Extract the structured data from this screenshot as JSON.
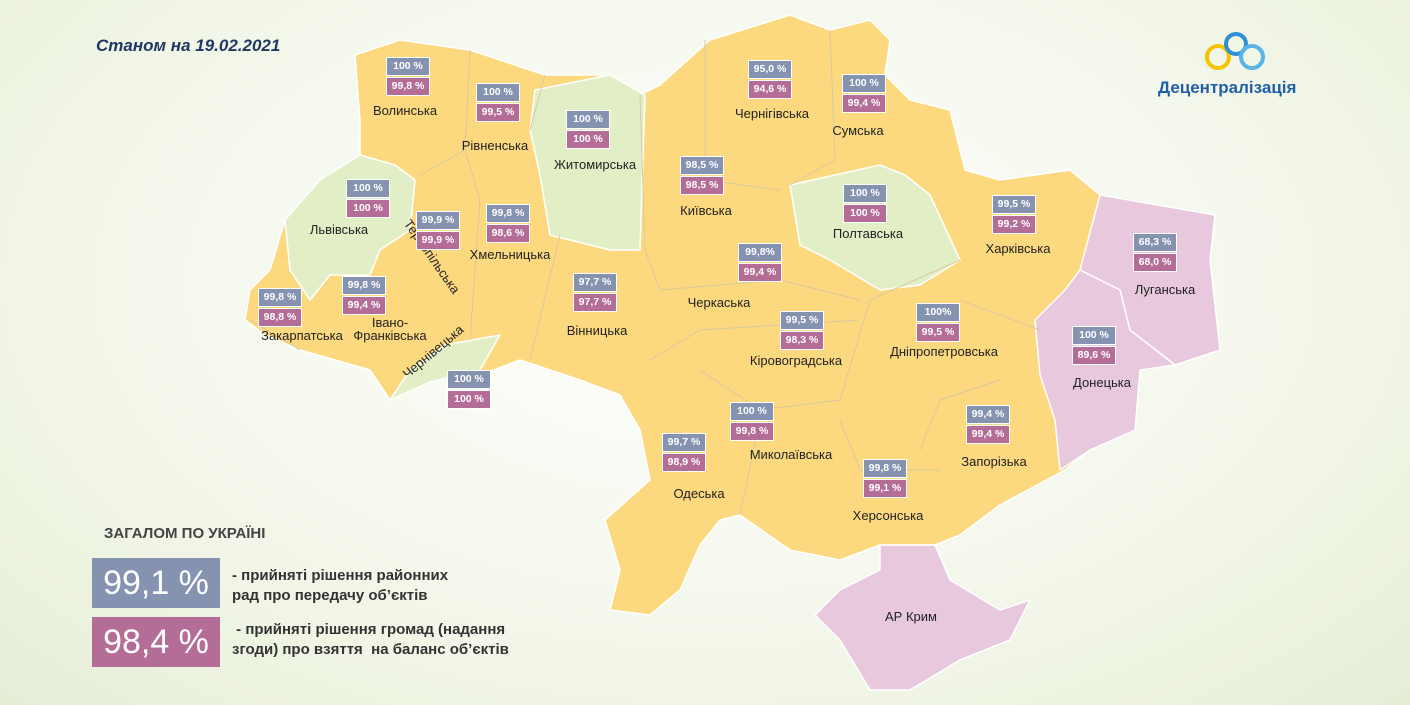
{
  "date": "Станом на 19.02.2021",
  "logo": "Децентралізація",
  "regions": [
    {
      "name": "Волинська",
      "districts": "100 %",
      "communities": "99,8 %"
    },
    {
      "name": "Рівненська",
      "districts": "100 %",
      "communities": "99,5 %"
    },
    {
      "name": "Житомирська",
      "districts": "100 %",
      "communities": "100 %"
    },
    {
      "name": "Чернігівська",
      "districts": "95,0 %",
      "communities": "94,6 %"
    },
    {
      "name": "Сумська",
      "districts": "100 %",
      "communities": "99,4 %"
    },
    {
      "name": "Львівська",
      "districts": "100 %",
      "communities": "100 %"
    },
    {
      "name": "Тернопільська",
      "districts": "99,9 %",
      "communities": "99,9 %"
    },
    {
      "name": "Хмельницька",
      "districts": "99,8 %",
      "communities": "98,6 %"
    },
    {
      "name": "Київська",
      "districts": "98,5 %",
      "communities": "98,5 %"
    },
    {
      "name": "Полтавська",
      "districts": "100 %",
      "communities": "100 %"
    },
    {
      "name": "Харківська",
      "districts": "99,5 %",
      "communities": "99,2 %"
    },
    {
      "name": "Луганська",
      "districts": "68,3 %",
      "communities": "68,0 %"
    },
    {
      "name": "Черкаська",
      "districts": "99,8%",
      "communities": "99,4 %"
    },
    {
      "name": "Вінницька",
      "districts": "97,7 %",
      "communities": "97,7 %"
    },
    {
      "name": "Закарпатська",
      "districts": "99,8 %",
      "communities": "98,8 %"
    },
    {
      "name": "Івано-\nФранківська",
      "districts": "99,8 %",
      "communities": "99,4 %"
    },
    {
      "name": "Кіровоградська",
      "districts": "99,5 %",
      "communities": "98,3 %"
    },
    {
      "name": "Дніпропетровська",
      "districts": "100%",
      "communities": "99,5 %"
    },
    {
      "name": "Донецька",
      "districts": "100 %",
      "communities": "89,6 %"
    },
    {
      "name": "Чернівецька",
      "districts": "100 %",
      "communities": "100 %"
    },
    {
      "name": "Миколаївська",
      "districts": "100 %",
      "communities": "99,8 %"
    },
    {
      "name": "Одеська",
      "districts": "99,7 %",
      "communities": "98,9 %"
    },
    {
      "name": "Запорізька",
      "districts": "99,4 %",
      "communities": "99,4 %"
    },
    {
      "name": "Херсонська",
      "districts": "99,8 %",
      "communities": "99,1 %"
    },
    {
      "name": "АР Крим"
    }
  ],
  "summary": {
    "title": "ЗАГАЛОМ ПО УКРАЇНІ",
    "items": [
      {
        "value": "99,1 %",
        "text": "- прийняті рішення районних\nрад про передачу об’єктів"
      },
      {
        "value": "98,4 %",
        "text": " - прийняті рішення громад (надання\nзгоди) про взяття  на баланс об’єктів"
      }
    ]
  }
}
